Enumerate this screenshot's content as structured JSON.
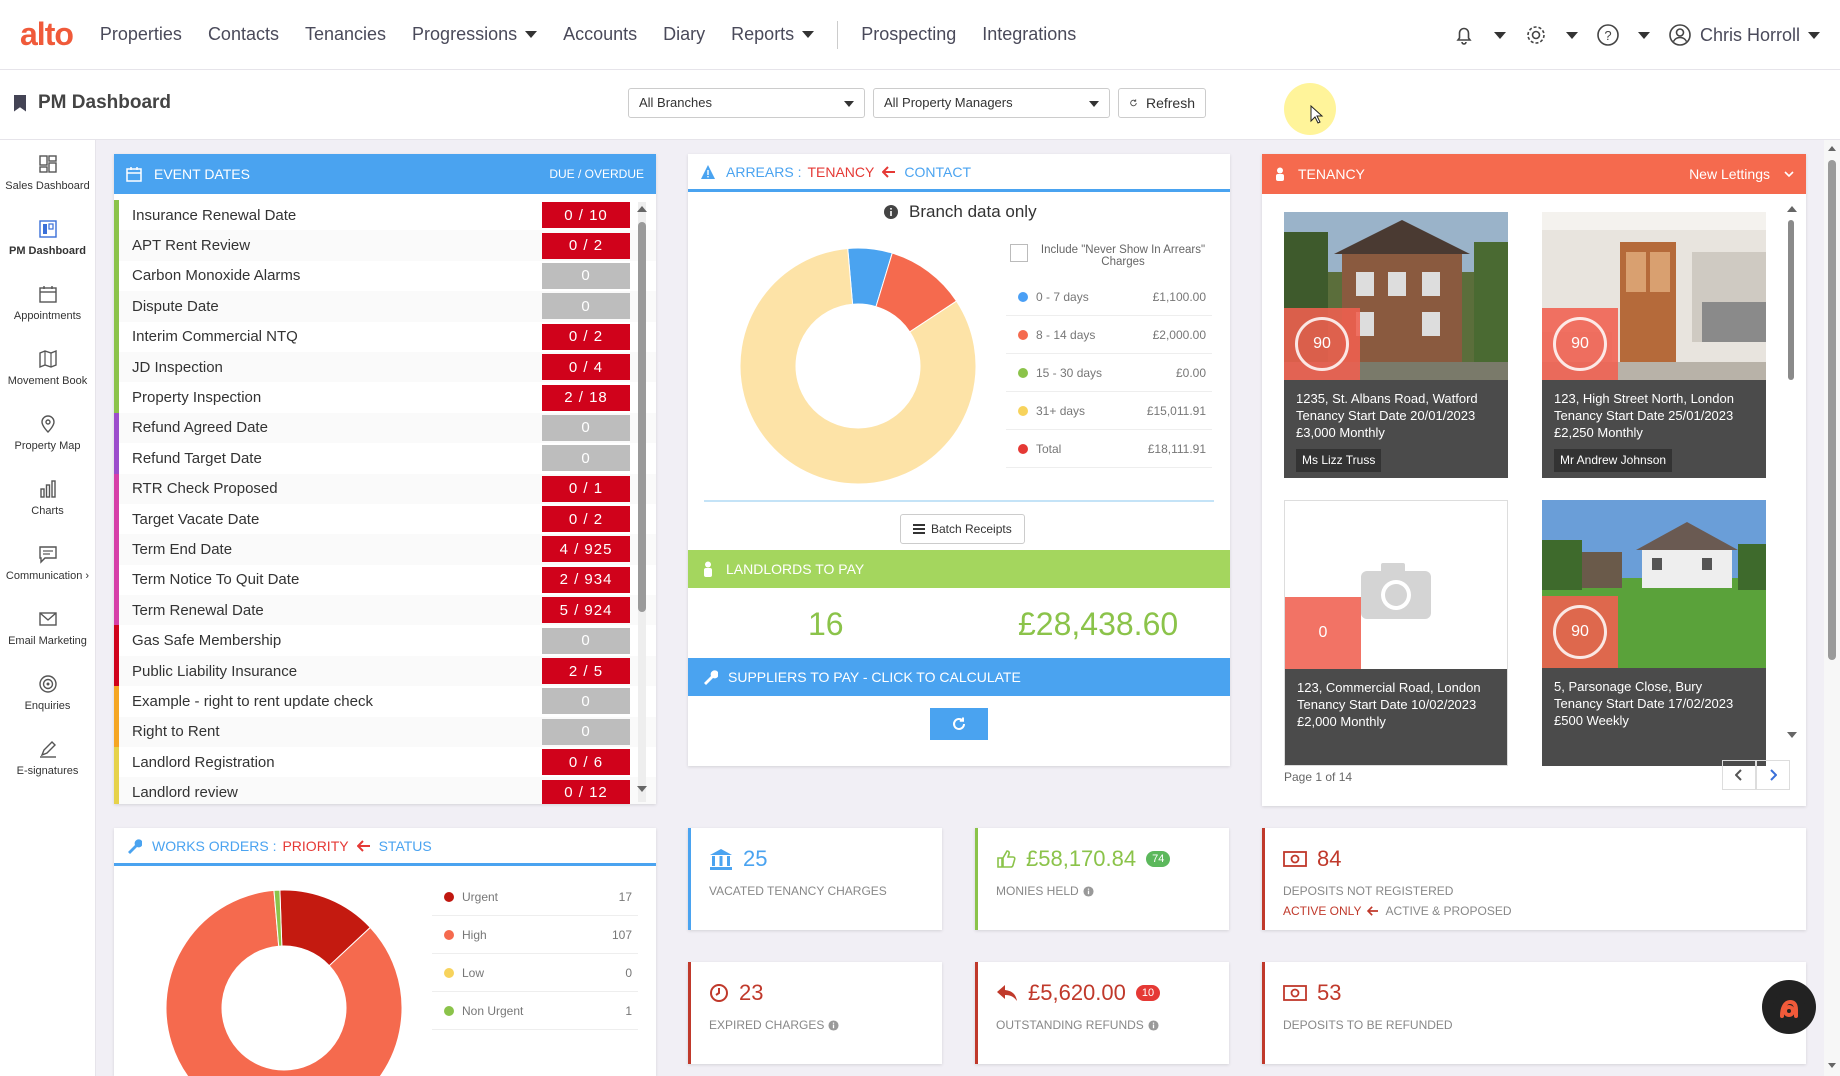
{
  "app": {
    "logo": "alto"
  },
  "nav": {
    "items": [
      {
        "label": "Properties",
        "dropdown": false
      },
      {
        "label": "Contacts",
        "dropdown": false
      },
      {
        "label": "Tenancies",
        "dropdown": false
      },
      {
        "label": "Progressions",
        "dropdown": true
      },
      {
        "label": "Accounts",
        "dropdown": false
      },
      {
        "label": "Diary",
        "dropdown": false
      },
      {
        "label": "Reports",
        "dropdown": true
      }
    ],
    "secondary": [
      {
        "label": "Prospecting"
      },
      {
        "label": "Integrations"
      }
    ],
    "user": "Chris Horroll"
  },
  "header": {
    "title": "PM Dashboard",
    "branch_select": "All Branches",
    "manager_select": "All Property Managers",
    "refresh_label": "Refresh"
  },
  "sidebar": {
    "items": [
      {
        "label": "Sales Dashboard",
        "icon": "dashboard-icon"
      },
      {
        "label": "PM Dashboard",
        "icon": "pm-dashboard-icon"
      },
      {
        "label": "Appointments",
        "icon": "calendar-icon"
      },
      {
        "label": "Movement Book",
        "icon": "book-icon"
      },
      {
        "label": "Property Map",
        "icon": "map-pin-icon"
      },
      {
        "label": "Charts",
        "icon": "bar-chart-icon"
      },
      {
        "label": "Communication ›",
        "icon": "chat-icon"
      },
      {
        "label": "Email Marketing",
        "icon": "envelope-icon"
      },
      {
        "label": "Enquiries",
        "icon": "target-icon"
      },
      {
        "label": "E-signatures",
        "icon": "pen-icon"
      }
    ]
  },
  "event_dates": {
    "title": "EVENT DATES",
    "due_label": "DUE / OVERDUE",
    "rows": [
      {
        "label": "Insurance Renewal Date",
        "value": "0 / 10",
        "style": "red",
        "color": "#8bc34a"
      },
      {
        "label": "APT Rent Review",
        "value": "0 / 2",
        "style": "red",
        "color": "#8bc34a"
      },
      {
        "label": "Carbon Monoxide Alarms",
        "value": "0",
        "style": "grey",
        "color": "#8bc34a"
      },
      {
        "label": "Dispute Date",
        "value": "0",
        "style": "grey",
        "color": "#8bc34a"
      },
      {
        "label": "Interim Commercial NTQ",
        "value": "0 / 2",
        "style": "red",
        "color": "#8bc34a"
      },
      {
        "label": "JD Inspection",
        "value": "0 / 4",
        "style": "red",
        "color": "#8bc34a"
      },
      {
        "label": "Property Inspection",
        "value": "2 / 18",
        "style": "red",
        "color": "#8bc34a"
      },
      {
        "label": "Refund Agreed Date",
        "value": "0",
        "style": "grey",
        "color": "#9c4dcc"
      },
      {
        "label": "Refund Target Date",
        "value": "0",
        "style": "grey",
        "color": "#9c4dcc"
      },
      {
        "label": "RTR Check Proposed",
        "value": "0 / 1",
        "style": "red",
        "color": "#d63fa8"
      },
      {
        "label": "Target Vacate Date",
        "value": "0 / 2",
        "style": "red",
        "color": "#d63fa8"
      },
      {
        "label": "Term End Date",
        "value": "4 / 925",
        "style": "red",
        "color": "#d63fa8"
      },
      {
        "label": "Term Notice To Quit Date",
        "value": "2 / 934",
        "style": "red",
        "color": "#d63fa8"
      },
      {
        "label": "Term Renewal Date",
        "value": "5 / 924",
        "style": "red",
        "color": "#d63fa8"
      },
      {
        "label": "Gas Safe Membership",
        "value": "0",
        "style": "grey",
        "color": "#d0021b"
      },
      {
        "label": "Public Liability Insurance",
        "value": "2 / 5",
        "style": "red",
        "color": "#d0021b"
      },
      {
        "label": "Example - right to rent update check",
        "value": "0",
        "style": "grey",
        "color": "#f5a623"
      },
      {
        "label": "Right to Rent",
        "value": "0",
        "style": "grey",
        "color": "#f5a623"
      },
      {
        "label": "Landlord Registration",
        "value": "0 / 6",
        "style": "red",
        "color": "#e6d24a"
      },
      {
        "label": "Landlord review",
        "value": "0 / 12",
        "style": "red",
        "color": "#e6d24a"
      }
    ]
  },
  "arrears": {
    "title_a": "ARREARS :",
    "title_b": "TENANCY",
    "title_c": "CONTACT",
    "branch_note": "Branch data only",
    "include_label": "Include \"Never Show In Arrears\" Charges",
    "legend": [
      {
        "label": "0 - 7 days",
        "amount": "£1,100.00",
        "color": "#4a9ff5"
      },
      {
        "label": "8 - 14 days",
        "amount": "£2,000.00",
        "color": "#f56a4e"
      },
      {
        "label": "15 - 30 days",
        "amount": "£0.00",
        "color": "#8bc34a"
      },
      {
        "label": "31+ days",
        "amount": "£15,011.91",
        "color": "#f7d35c"
      },
      {
        "label": "Total",
        "amount": "£18,111.91",
        "color": "#e53935"
      }
    ],
    "batch_label": "Batch Receipts"
  },
  "arrears_chart": {
    "type": "pie",
    "categories": [
      "0 - 7 days",
      "8 - 14 days",
      "15 - 30 days",
      "31+ days"
    ],
    "values": [
      1100,
      2000,
      0,
      15011.91
    ],
    "colors": [
      "#4aa3f0",
      "#f56a4e",
      "#8bc34a",
      "#fde3a7"
    ]
  },
  "landlords": {
    "title": "LANDLORDS TO PAY",
    "count": "16",
    "amount": "£28,438.60"
  },
  "suppliers": {
    "title": "SUPPLIERS TO PAY - CLICK TO CALCULATE"
  },
  "tenancy": {
    "title": "TENANCY",
    "filter": "New Lettings",
    "page": "Page 1 of 14",
    "cards": [
      {
        "score": "90",
        "address": "1235, St. Albans Road, Watford",
        "start": "Tenancy Start Date 20/01/2023",
        "rent": "£3,000 Monthly",
        "owner": "Ms Lizz Truss",
        "photo": "house"
      },
      {
        "score": "90",
        "address": "123, High Street North, London",
        "start": "Tenancy Start Date 25/01/2023",
        "rent": "£2,250 Monthly",
        "owner": "Mr Andrew Johnson",
        "photo": "kitchen"
      },
      {
        "score": "0",
        "address": "123, Commercial Road, London",
        "start": "Tenancy Start Date 10/02/2023",
        "rent": "£2,000 Monthly",
        "owner": "",
        "photo": "none"
      },
      {
        "score": "90",
        "address": "5, Parsonage Close, Bury",
        "start": "Tenancy Start Date 17/02/2023",
        "rent": "£500 Weekly",
        "owner": "",
        "photo": "garden"
      }
    ]
  },
  "works_orders": {
    "title_a": "WORKS ORDERS :",
    "title_b": "PRIORITY",
    "title_c": "STATUS",
    "legend": [
      {
        "label": "Urgent",
        "count": "17",
        "color": "#c0170f"
      },
      {
        "label": "High",
        "count": "107",
        "color": "#f56a4e"
      },
      {
        "label": "Low",
        "count": "0",
        "color": "#f7d35c"
      },
      {
        "label": "Non Urgent",
        "count": "1",
        "color": "#8bc34a"
      }
    ]
  },
  "works_chart": {
    "type": "pie",
    "categories": [
      "Urgent",
      "High",
      "Low",
      "Non Urgent"
    ],
    "values": [
      17,
      107,
      0,
      1
    ],
    "colors": [
      "#c41a10",
      "#f56a4e",
      "#f7d35c",
      "#8bc34a"
    ]
  },
  "tiles": {
    "vacated": {
      "value": "25",
      "label": "VACATED TENANCY CHARGES"
    },
    "monies": {
      "value": "£58,170.84",
      "badge": "74",
      "label": "MONIES HELD"
    },
    "deposits_nr": {
      "value": "84",
      "label": "DEPOSITS NOT REGISTERED",
      "toggle_a": "ACTIVE ONLY",
      "toggle_b": "ACTIVE & PROPOSED"
    },
    "expired": {
      "value": "23",
      "label": "EXPIRED CHARGES"
    },
    "refunds": {
      "value": "£5,620.00",
      "badge": "10",
      "label": "OUTSTANDING REFUNDS"
    },
    "deposits_refund": {
      "value": "53",
      "label": "DEPOSITS TO BE REFUNDED"
    }
  },
  "colors": {
    "accent_blue": "#4aa3f0",
    "accent_red": "#f56a4e",
    "accent_green": "#a4d65e",
    "brand": "#f05a3a"
  }
}
